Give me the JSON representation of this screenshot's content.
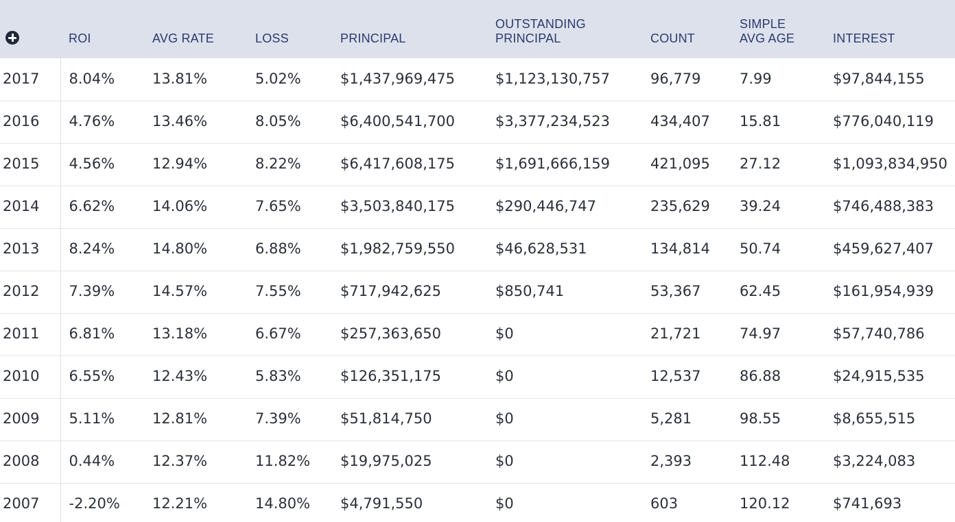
{
  "table": {
    "headers": [
      {
        "key": "roi",
        "lines": [
          "ROI"
        ]
      },
      {
        "key": "avg-rate",
        "lines": [
          "AVG RATE"
        ]
      },
      {
        "key": "loss",
        "lines": [
          "LOSS"
        ]
      },
      {
        "key": "principal",
        "lines": [
          "PRINCIPAL"
        ]
      },
      {
        "key": "outstanding-principal",
        "lines": [
          "OUTSTANDING",
          "PRINCIPAL"
        ]
      },
      {
        "key": "count",
        "lines": [
          "COUNT"
        ]
      },
      {
        "key": "simple-avg-age",
        "lines": [
          "SIMPLE",
          "AVG AGE"
        ]
      },
      {
        "key": "interest",
        "lines": [
          "INTEREST"
        ]
      }
    ],
    "add_icon": "plus-circle-icon",
    "rows": [
      [
        "2017",
        "8.04%",
        "13.81%",
        "5.02%",
        "$1,437,969,475",
        "$1,123,130,757",
        "96,779",
        "7.99",
        "$97,844,155"
      ],
      [
        "2016",
        "4.76%",
        "13.46%",
        "8.05%",
        "$6,400,541,700",
        "$3,377,234,523",
        "434,407",
        "15.81",
        "$776,040,119"
      ],
      [
        "2015",
        "4.56%",
        "12.94%",
        "8.22%",
        "$6,417,608,175",
        "$1,691,666,159",
        "421,095",
        "27.12",
        "$1,093,834,950"
      ],
      [
        "2014",
        "6.62%",
        "14.06%",
        "7.65%",
        "$3,503,840,175",
        "$290,446,747",
        "235,629",
        "39.24",
        "$746,488,383"
      ],
      [
        "2013",
        "8.24%",
        "14.80%",
        "6.88%",
        "$1,982,759,550",
        "$46,628,531",
        "134,814",
        "50.74",
        "$459,627,407"
      ],
      [
        "2012",
        "7.39%",
        "14.57%",
        "7.55%",
        "$717,942,625",
        "$850,741",
        "53,367",
        "62.45",
        "$161,954,939"
      ],
      [
        "2011",
        "6.81%",
        "13.18%",
        "6.67%",
        "$257,363,650",
        "$0",
        "21,721",
        "74.97",
        "$57,740,786"
      ],
      [
        "2010",
        "6.55%",
        "12.43%",
        "5.83%",
        "$126,351,175",
        "$0",
        "12,537",
        "86.88",
        "$24,915,535"
      ],
      [
        "2009",
        "5.11%",
        "12.81%",
        "7.39%",
        "$51,814,750",
        "$0",
        "5,281",
        "98.55",
        "$8,655,515"
      ],
      [
        "2008",
        "0.44%",
        "12.37%",
        "11.82%",
        "$19,975,025",
        "$0",
        "2,393",
        "112.48",
        "$3,224,083"
      ],
      [
        "2007",
        "-2.20%",
        "12.21%",
        "14.80%",
        "$4,791,550",
        "$0",
        "603",
        "120.12",
        "$741,693"
      ]
    ]
  },
  "colors": {
    "header_bg": "#dde1ec",
    "header_text": "#2a3a6e",
    "row_divider": "#e2e4e8",
    "body_text": "#2b3038"
  }
}
